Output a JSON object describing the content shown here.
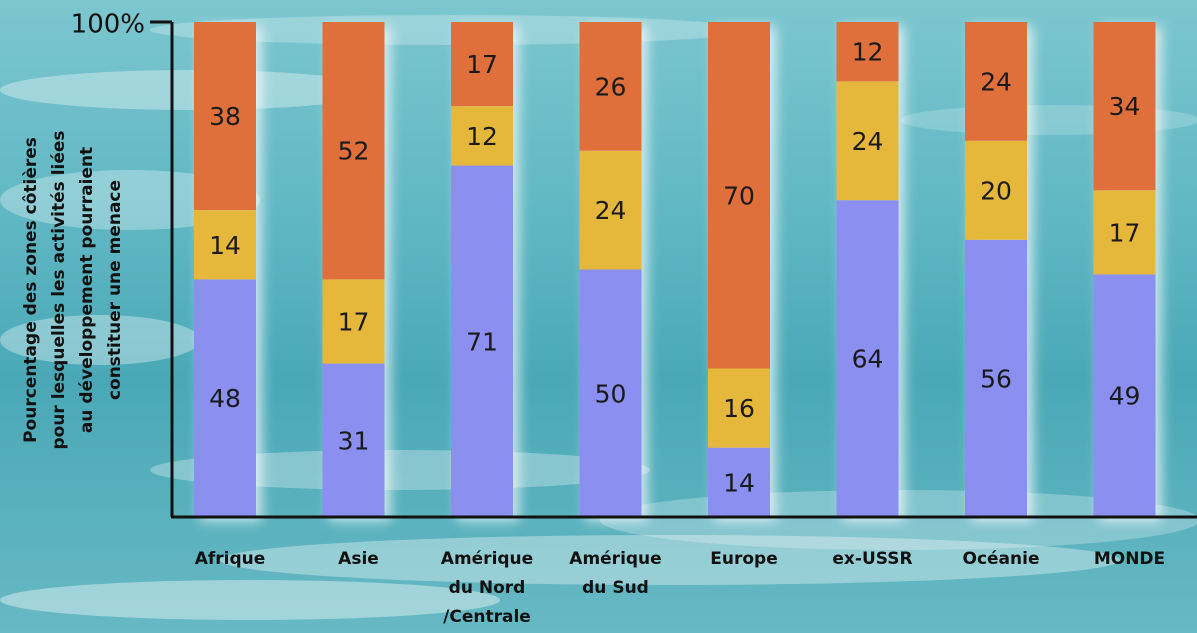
{
  "chart_data": {
    "type": "bar",
    "stacked": true,
    "ylabel_lines": [
      "Pourcentage des zones côtières",
      "pour lesquelles les activités liées",
      "au développement pourraient",
      "constituer une menace"
    ],
    "ytick": "100%",
    "ylim": [
      0,
      100
    ],
    "categories": [
      [
        "Afrique"
      ],
      [
        "Asie"
      ],
      [
        "Amérique",
        "du Nord",
        "/Centrale"
      ],
      [
        "Amérique",
        "du Sud"
      ],
      [
        "Europe"
      ],
      [
        "ex-USSR"
      ],
      [
        "Océanie"
      ],
      [
        "MONDE"
      ]
    ],
    "series": [
      {
        "color": "#8a8ff0",
        "values": [
          48,
          31,
          71,
          50,
          14,
          64,
          56,
          49
        ]
      },
      {
        "color": "#e5b83b",
        "values": [
          14,
          17,
          12,
          24,
          16,
          24,
          20,
          17
        ]
      },
      {
        "color": "#e0703a",
        "values": [
          38,
          52,
          17,
          26,
          70,
          12,
          24,
          34
        ]
      }
    ]
  }
}
